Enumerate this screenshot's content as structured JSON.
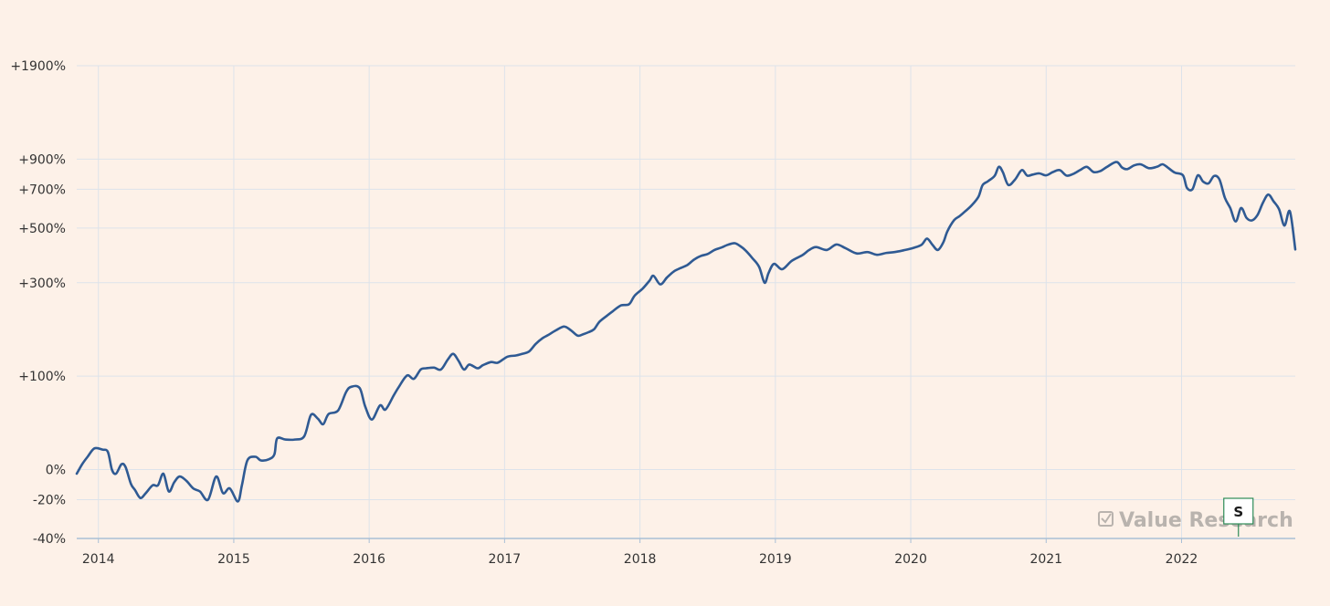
{
  "chart_data": {
    "type": "line",
    "title": "",
    "xlabel": "",
    "ylabel": "",
    "y_scale": "log(1+r)",
    "grid": true,
    "legend": "none",
    "colors": {
      "line": "#2f5a93",
      "grid": "#dde3ea",
      "axis": "#a9bfd6",
      "background": "#fdf1e8",
      "watermark": "#b9b3ae",
      "flag_border": "#2e8b57"
    },
    "y_ticks": [
      {
        "value": -40,
        "label": "-40%"
      },
      {
        "value": -20,
        "label": "-20%"
      },
      {
        "value": 0,
        "label": "0%"
      },
      {
        "value": 100,
        "label": "+100%"
      },
      {
        "value": 300,
        "label": "+300%"
      },
      {
        "value": 500,
        "label": "+500%"
      },
      {
        "value": 700,
        "label": "+700%"
      },
      {
        "value": 900,
        "label": "+900%"
      },
      {
        "value": 1900,
        "label": "+1900%"
      }
    ],
    "x_range": [
      2013.84,
      2022.84
    ],
    "x_ticks": [
      {
        "value": 2014,
        "label": "2014"
      },
      {
        "value": 2015,
        "label": "2015"
      },
      {
        "value": 2016,
        "label": "2016"
      },
      {
        "value": 2017,
        "label": "2017"
      },
      {
        "value": 2018,
        "label": "2018"
      },
      {
        "value": 2019,
        "label": "2019"
      },
      {
        "value": 2020,
        "label": "2020"
      },
      {
        "value": 2021,
        "label": "2021"
      },
      {
        "value": 2022,
        "label": "2022"
      }
    ],
    "ylim": [
      -40,
      1900
    ],
    "series": [
      {
        "values": [
          [
            2013.84,
            -3
          ],
          [
            2013.88,
            4
          ],
          [
            2013.92,
            10
          ],
          [
            2013.97,
            17
          ],
          [
            2014.03,
            16
          ],
          [
            2014.07,
            14
          ],
          [
            2014.1,
            0
          ],
          [
            2014.13,
            -3
          ],
          [
            2014.17,
            4
          ],
          [
            2014.2,
            2
          ],
          [
            2014.24,
            -10
          ],
          [
            2014.27,
            -14
          ],
          [
            2014.31,
            -19
          ],
          [
            2014.35,
            -16
          ],
          [
            2014.4,
            -11
          ],
          [
            2014.44,
            -11
          ],
          [
            2014.48,
            -3
          ],
          [
            2014.52,
            -15
          ],
          [
            2014.56,
            -9
          ],
          [
            2014.6,
            -5
          ],
          [
            2014.65,
            -8
          ],
          [
            2014.7,
            -13
          ],
          [
            2014.75,
            -15
          ],
          [
            2014.81,
            -20
          ],
          [
            2014.87,
            -5
          ],
          [
            2014.92,
            -16
          ],
          [
            2014.97,
            -13
          ],
          [
            2015.03,
            -21
          ],
          [
            2015.06,
            -11
          ],
          [
            2015.1,
            7
          ],
          [
            2015.16,
            10
          ],
          [
            2015.2,
            7
          ],
          [
            2015.26,
            8
          ],
          [
            2015.3,
            12
          ],
          [
            2015.32,
            26
          ],
          [
            2015.38,
            25
          ],
          [
            2015.45,
            25
          ],
          [
            2015.52,
            28
          ],
          [
            2015.57,
            50
          ],
          [
            2015.62,
            46
          ],
          [
            2015.66,
            40
          ],
          [
            2015.7,
            51
          ],
          [
            2015.77,
            55
          ],
          [
            2015.83,
            78
          ],
          [
            2015.87,
            85
          ],
          [
            2015.93,
            83
          ],
          [
            2015.97,
            60
          ],
          [
            2016.02,
            45
          ],
          [
            2016.08,
            61
          ],
          [
            2016.12,
            56
          ],
          [
            2016.18,
            73
          ],
          [
            2016.22,
            85
          ],
          [
            2016.28,
            101
          ],
          [
            2016.33,
            96
          ],
          [
            2016.38,
            110
          ],
          [
            2016.42,
            112
          ],
          [
            2016.48,
            113
          ],
          [
            2016.53,
            110
          ],
          [
            2016.58,
            126
          ],
          [
            2016.62,
            136
          ],
          [
            2016.66,
            124
          ],
          [
            2016.7,
            110
          ],
          [
            2016.74,
            118
          ],
          [
            2016.8,
            112
          ],
          [
            2016.84,
            117
          ],
          [
            2016.9,
            122
          ],
          [
            2016.95,
            121
          ],
          [
            2017.02,
            131
          ],
          [
            2017.08,
            133
          ],
          [
            2017.13,
            136
          ],
          [
            2017.18,
            140
          ],
          [
            2017.23,
            154
          ],
          [
            2017.28,
            165
          ],
          [
            2017.32,
            171
          ],
          [
            2017.38,
            181
          ],
          [
            2017.44,
            189
          ],
          [
            2017.49,
            181
          ],
          [
            2017.54,
            170
          ],
          [
            2017.58,
            173
          ],
          [
            2017.62,
            177
          ],
          [
            2017.66,
            183
          ],
          [
            2017.7,
            199
          ],
          [
            2017.76,
            214
          ],
          [
            2017.8,
            224
          ],
          [
            2017.86,
            238
          ],
          [
            2017.92,
            241
          ],
          [
            2017.96,
            263
          ],
          [
            2018.02,
            283
          ],
          [
            2018.07,
            306
          ],
          [
            2018.1,
            321
          ],
          [
            2018.15,
            295
          ],
          [
            2018.2,
            316
          ],
          [
            2018.25,
            335
          ],
          [
            2018.3,
            346
          ],
          [
            2018.35,
            356
          ],
          [
            2018.4,
            375
          ],
          [
            2018.45,
            388
          ],
          [
            2018.5,
            395
          ],
          [
            2018.55,
            410
          ],
          [
            2018.6,
            419
          ],
          [
            2018.65,
            430
          ],
          [
            2018.7,
            436
          ],
          [
            2018.74,
            425
          ],
          [
            2018.78,
            408
          ],
          [
            2018.83,
            380
          ],
          [
            2018.88,
            350
          ],
          [
            2018.92,
            300
          ],
          [
            2018.95,
            330
          ],
          [
            2018.99,
            360
          ],
          [
            2019.05,
            342
          ],
          [
            2019.12,
            370
          ],
          [
            2019.2,
            391
          ],
          [
            2019.25,
            410
          ],
          [
            2019.3,
            421
          ],
          [
            2019.38,
            410
          ],
          [
            2019.45,
            431
          ],
          [
            2019.52,
            416
          ],
          [
            2019.6,
            397
          ],
          [
            2019.68,
            402
          ],
          [
            2019.75,
            392
          ],
          [
            2019.82,
            399
          ],
          [
            2019.88,
            402
          ],
          [
            2019.95,
            409
          ],
          [
            2020.02,
            418
          ],
          [
            2020.08,
            430
          ],
          [
            2020.12,
            455
          ],
          [
            2020.16,
            430
          ],
          [
            2020.2,
            410
          ],
          [
            2020.24,
            439
          ],
          [
            2020.27,
            485
          ],
          [
            2020.32,
            536
          ],
          [
            2020.36,
            555
          ],
          [
            2020.4,
            578
          ],
          [
            2020.45,
            610
          ],
          [
            2020.5,
            657
          ],
          [
            2020.53,
            724
          ],
          [
            2020.57,
            749
          ],
          [
            2020.62,
            784
          ],
          [
            2020.65,
            845
          ],
          [
            2020.68,
            809
          ],
          [
            2020.72,
            726
          ],
          [
            2020.77,
            760
          ],
          [
            2020.82,
            822
          ],
          [
            2020.86,
            785
          ],
          [
            2020.9,
            792
          ],
          [
            2020.95,
            800
          ],
          [
            2021.0,
            787
          ],
          [
            2021.05,
            809
          ],
          [
            2021.1,
            822
          ],
          [
            2021.15,
            785
          ],
          [
            2021.2,
            796
          ],
          [
            2021.25,
            822
          ],
          [
            2021.3,
            845
          ],
          [
            2021.35,
            809
          ],
          [
            2021.4,
            816
          ],
          [
            2021.45,
            845
          ],
          [
            2021.52,
            880
          ],
          [
            2021.56,
            840
          ],
          [
            2021.6,
            829
          ],
          [
            2021.65,
            855
          ],
          [
            2021.7,
            862
          ],
          [
            2021.76,
            835
          ],
          [
            2021.82,
            846
          ],
          [
            2021.86,
            863
          ],
          [
            2021.9,
            838
          ],
          [
            2021.95,
            805
          ],
          [
            2022.01,
            787
          ],
          [
            2022.04,
            708
          ],
          [
            2022.08,
            700
          ],
          [
            2022.12,
            787
          ],
          [
            2022.16,
            746
          ],
          [
            2022.2,
            736
          ],
          [
            2022.24,
            783
          ],
          [
            2022.28,
            760
          ],
          [
            2022.32,
            651
          ],
          [
            2022.36,
            595
          ],
          [
            2022.4,
            530
          ],
          [
            2022.44,
            596
          ],
          [
            2022.48,
            547
          ],
          [
            2022.52,
            535
          ],
          [
            2022.56,
            560
          ],
          [
            2022.6,
            622
          ],
          [
            2022.64,
            669
          ],
          [
            2022.68,
            631
          ],
          [
            2022.72,
            590
          ],
          [
            2022.76,
            511
          ],
          [
            2022.8,
            579
          ],
          [
            2022.84,
            412
          ]
        ]
      }
    ]
  },
  "watermark": {
    "icon": "check-box-icon",
    "text": "Value Research"
  },
  "marker": {
    "label": "S",
    "x": 2022.42
  }
}
